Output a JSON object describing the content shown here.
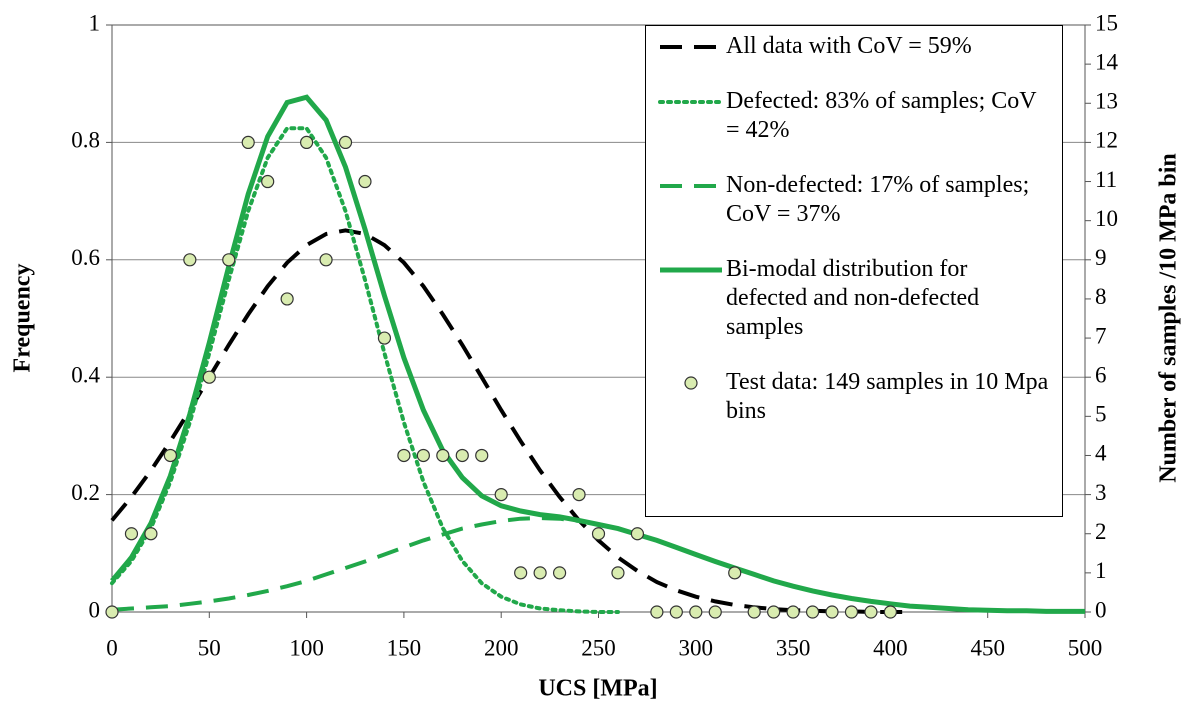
{
  "chart_data": {
    "type": "line",
    "xlabel": "UCS [MPa]",
    "ylabel": "Frequency",
    "y2label": "Number of samples /10 MPa bin",
    "xlim": [
      0,
      500
    ],
    "xticks": [
      0,
      50,
      100,
      150,
      200,
      250,
      300,
      350,
      400,
      450,
      500
    ],
    "ylim": [
      0,
      1
    ],
    "yticks": [
      0,
      0.2,
      0.4,
      0.6,
      0.8,
      1
    ],
    "y2lim": [
      0,
      15
    ],
    "y2ticks": [
      0,
      1,
      2,
      3,
      4,
      5,
      6,
      7,
      8,
      9,
      10,
      11,
      12,
      13,
      14,
      15
    ],
    "grid": true,
    "x": [
      0,
      10,
      20,
      30,
      40,
      50,
      60,
      70,
      80,
      90,
      100,
      110,
      120,
      130,
      140,
      150,
      160,
      170,
      180,
      190,
      200,
      210,
      220,
      230,
      240,
      250,
      260,
      270,
      280,
      290,
      300,
      310,
      320,
      330,
      340,
      350,
      360,
      370,
      380,
      390,
      400,
      410,
      420,
      430,
      440,
      450,
      460,
      470,
      480,
      490,
      500
    ],
    "series": [
      {
        "name": "All data with CoV = 59%",
        "color": "#000000",
        "style": "dashed",
        "values": [
          0.156,
          0.196,
          0.241,
          0.291,
          0.344,
          0.4,
          0.455,
          0.507,
          0.555,
          0.595,
          0.625,
          0.644,
          0.65,
          0.644,
          0.625,
          0.595,
          0.555,
          0.507,
          0.455,
          0.4,
          0.344,
          0.291,
          0.241,
          0.196,
          0.156,
          0.122,
          0.093,
          0.07,
          0.051,
          0.037,
          0.026,
          0.018,
          0.012,
          0.008,
          0.005,
          0.003,
          0.002,
          0.001,
          0.001,
          0,
          0,
          0,
          null,
          null,
          null,
          null,
          null,
          null,
          null,
          null,
          null
        ]
      },
      {
        "name": "Defected: 83% of samples; CoV = 42%",
        "color": "#21a84a",
        "style": "dotted",
        "values": [
          0.049,
          0.087,
          0.143,
          0.222,
          0.323,
          0.441,
          0.566,
          0.683,
          0.774,
          0.824,
          0.824,
          0.774,
          0.683,
          0.566,
          0.441,
          0.323,
          0.222,
          0.143,
          0.087,
          0.049,
          0.026,
          0.013,
          0.006,
          0.003,
          0.001,
          0,
          0,
          null,
          null,
          null,
          null,
          null,
          null,
          null,
          null,
          null,
          null,
          null,
          null,
          null,
          null,
          null,
          null,
          null,
          null,
          null,
          null,
          null,
          null,
          null,
          null
        ]
      },
      {
        "name": "Non-defected: 17% of samples; CoV = 37%",
        "color": "#21a84a",
        "style": "dashed",
        "values": [
          0.004,
          0.006,
          0.008,
          0.01,
          0.014,
          0.018,
          0.023,
          0.029,
          0.036,
          0.044,
          0.053,
          0.064,
          0.075,
          0.086,
          0.098,
          0.11,
          0.122,
          0.132,
          0.142,
          0.149,
          0.155,
          0.159,
          0.16,
          0.159,
          0.155,
          0.149,
          null,
          null,
          null,
          null,
          null,
          null,
          null,
          null,
          null,
          null,
          null,
          null,
          null,
          null,
          null,
          null,
          null,
          null,
          null,
          null,
          null,
          null,
          null,
          null,
          null
        ]
      },
      {
        "name": "Bi-modal distribution for defected and non-defected samples",
        "color": "#21a84a",
        "style": "solid",
        "values": [
          0.053,
          0.093,
          0.151,
          0.232,
          0.337,
          0.459,
          0.589,
          0.712,
          0.81,
          0.868,
          0.877,
          0.838,
          0.758,
          0.652,
          0.539,
          0.433,
          0.344,
          0.275,
          0.229,
          0.198,
          0.181,
          0.172,
          0.166,
          0.162,
          0.156,
          0.149,
          0.142,
          0.132,
          0.122,
          0.11,
          0.098,
          0.086,
          0.075,
          0.064,
          0.053,
          0.044,
          0.036,
          0.029,
          0.023,
          0.018,
          0.014,
          0.01,
          0.008,
          0.006,
          0.004,
          0.003,
          0.002,
          0.002,
          0.001,
          0.001,
          0.001
        ]
      },
      {
        "name": "Test data: 149 samples in 10 Mpa bins",
        "type": "scatter",
        "axis": "y2",
        "color": "#d9ecb0",
        "edgecolor": "#333333",
        "x": [
          0,
          10,
          20,
          30,
          40,
          50,
          60,
          70,
          80,
          90,
          100,
          110,
          120,
          130,
          140,
          150,
          160,
          170,
          180,
          190,
          200,
          210,
          220,
          230,
          240,
          250,
          260,
          270,
          280,
          290,
          300,
          310,
          320,
          330,
          340,
          350,
          360,
          370,
          380,
          390,
          400
        ],
        "values": [
          0,
          2,
          2,
          4,
          9,
          6,
          9,
          12,
          11,
          8,
          12,
          9,
          12,
          11,
          7,
          4,
          4,
          4,
          4,
          4,
          3,
          1,
          1,
          1,
          3,
          2,
          1,
          2,
          0,
          0,
          0,
          0,
          1,
          0,
          0,
          0,
          0,
          0,
          0,
          0,
          0
        ]
      }
    ]
  }
}
